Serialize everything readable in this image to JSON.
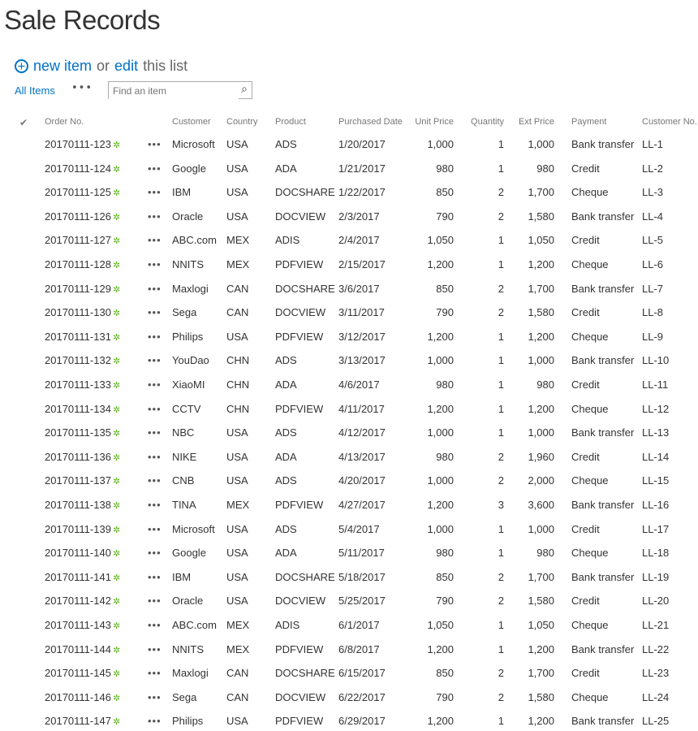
{
  "page_title": "Sale Records",
  "actions": {
    "new_item": "new item",
    "or": "or",
    "edit": "edit",
    "this_list": "this list"
  },
  "views": {
    "all_items": "All Items",
    "more": "•••"
  },
  "search": {
    "placeholder": "Find an item"
  },
  "columns": [
    "Order No.",
    "Customer",
    "Country",
    "Product",
    "Purchased Date",
    "Unit Price",
    "Quantity",
    "Ext Price",
    "Payment",
    "Customer No."
  ],
  "row_menu": "•••",
  "new_icon": "✲",
  "rows": [
    [
      "20170111-123",
      "Microsoft",
      "USA",
      "ADS",
      "1/20/2017",
      "1,000",
      "1",
      "1,000",
      "Bank transfer",
      "LL-1"
    ],
    [
      "20170111-124",
      "Google",
      "USA",
      "ADA",
      "1/21/2017",
      "980",
      "1",
      "980",
      "Credit",
      "LL-2"
    ],
    [
      "20170111-125",
      "IBM",
      "USA",
      "DOCSHARE",
      "1/22/2017",
      "850",
      "2",
      "1,700",
      "Cheque",
      "LL-3"
    ],
    [
      "20170111-126",
      "Oracle",
      "USA",
      "DOCVIEW",
      "2/3/2017",
      "790",
      "2",
      "1,580",
      "Bank transfer",
      "LL-4"
    ],
    [
      "20170111-127",
      "ABC.com",
      "MEX",
      "ADIS",
      "2/4/2017",
      "1,050",
      "1",
      "1,050",
      "Credit",
      "LL-5"
    ],
    [
      "20170111-128",
      "NNITS",
      "MEX",
      "PDFVIEW",
      "2/15/2017",
      "1,200",
      "1",
      "1,200",
      "Cheque",
      "LL-6"
    ],
    [
      "20170111-129",
      "Maxlogi",
      "CAN",
      "DOCSHARE",
      "3/6/2017",
      "850",
      "2",
      "1,700",
      "Bank transfer",
      "LL-7"
    ],
    [
      "20170111-130",
      "Sega",
      "CAN",
      "DOCVIEW",
      "3/11/2017",
      "790",
      "2",
      "1,580",
      "Credit",
      "LL-8"
    ],
    [
      "20170111-131",
      "Philips",
      "USA",
      "PDFVIEW",
      "3/12/2017",
      "1,200",
      "1",
      "1,200",
      "Cheque",
      "LL-9"
    ],
    [
      "20170111-132",
      "YouDao",
      "CHN",
      "ADS",
      "3/13/2017",
      "1,000",
      "1",
      "1,000",
      "Bank transfer",
      "LL-10"
    ],
    [
      "20170111-133",
      "XiaoMI",
      "CHN",
      "ADA",
      "4/6/2017",
      "980",
      "1",
      "980",
      "Credit",
      "LL-11"
    ],
    [
      "20170111-134",
      "CCTV",
      "CHN",
      "PDFVIEW",
      "4/11/2017",
      "1,200",
      "1",
      "1,200",
      "Cheque",
      "LL-12"
    ],
    [
      "20170111-135",
      "NBC",
      "USA",
      "ADS",
      "4/12/2017",
      "1,000",
      "1",
      "1,000",
      "Bank transfer",
      "LL-13"
    ],
    [
      "20170111-136",
      "NIKE",
      "USA",
      "ADA",
      "4/13/2017",
      "980",
      "2",
      "1,960",
      "Credit",
      "LL-14"
    ],
    [
      "20170111-137",
      "CNB",
      "USA",
      "ADS",
      "4/20/2017",
      "1,000",
      "2",
      "2,000",
      "Cheque",
      "LL-15"
    ],
    [
      "20170111-138",
      "TINA",
      "MEX",
      "PDFVIEW",
      "4/27/2017",
      "1,200",
      "3",
      "3,600",
      "Bank transfer",
      "LL-16"
    ],
    [
      "20170111-139",
      "Microsoft",
      "USA",
      "ADS",
      "5/4/2017",
      "1,000",
      "1",
      "1,000",
      "Credit",
      "LL-17"
    ],
    [
      "20170111-140",
      "Google",
      "USA",
      "ADA",
      "5/11/2017",
      "980",
      "1",
      "980",
      "Cheque",
      "LL-18"
    ],
    [
      "20170111-141",
      "IBM",
      "USA",
      "DOCSHARE",
      "5/18/2017",
      "850",
      "2",
      "1,700",
      "Bank transfer",
      "LL-19"
    ],
    [
      "20170111-142",
      "Oracle",
      "USA",
      "DOCVIEW",
      "5/25/2017",
      "790",
      "2",
      "1,580",
      "Credit",
      "LL-20"
    ],
    [
      "20170111-143",
      "ABC.com",
      "MEX",
      "ADIS",
      "6/1/2017",
      "1,050",
      "1",
      "1,050",
      "Cheque",
      "LL-21"
    ],
    [
      "20170111-144",
      "NNITS",
      "MEX",
      "PDFVIEW",
      "6/8/2017",
      "1,200",
      "1",
      "1,200",
      "Bank transfer",
      "LL-22"
    ],
    [
      "20170111-145",
      "Maxlogi",
      "CAN",
      "DOCSHARE",
      "6/15/2017",
      "850",
      "2",
      "1,700",
      "Credit",
      "LL-23"
    ],
    [
      "20170111-146",
      "Sega",
      "CAN",
      "DOCVIEW",
      "6/22/2017",
      "790",
      "2",
      "1,580",
      "Cheque",
      "LL-24"
    ],
    [
      "20170111-147",
      "Philips",
      "USA",
      "PDFVIEW",
      "6/29/2017",
      "1,200",
      "1",
      "1,200",
      "Bank transfer",
      "LL-25"
    ]
  ]
}
